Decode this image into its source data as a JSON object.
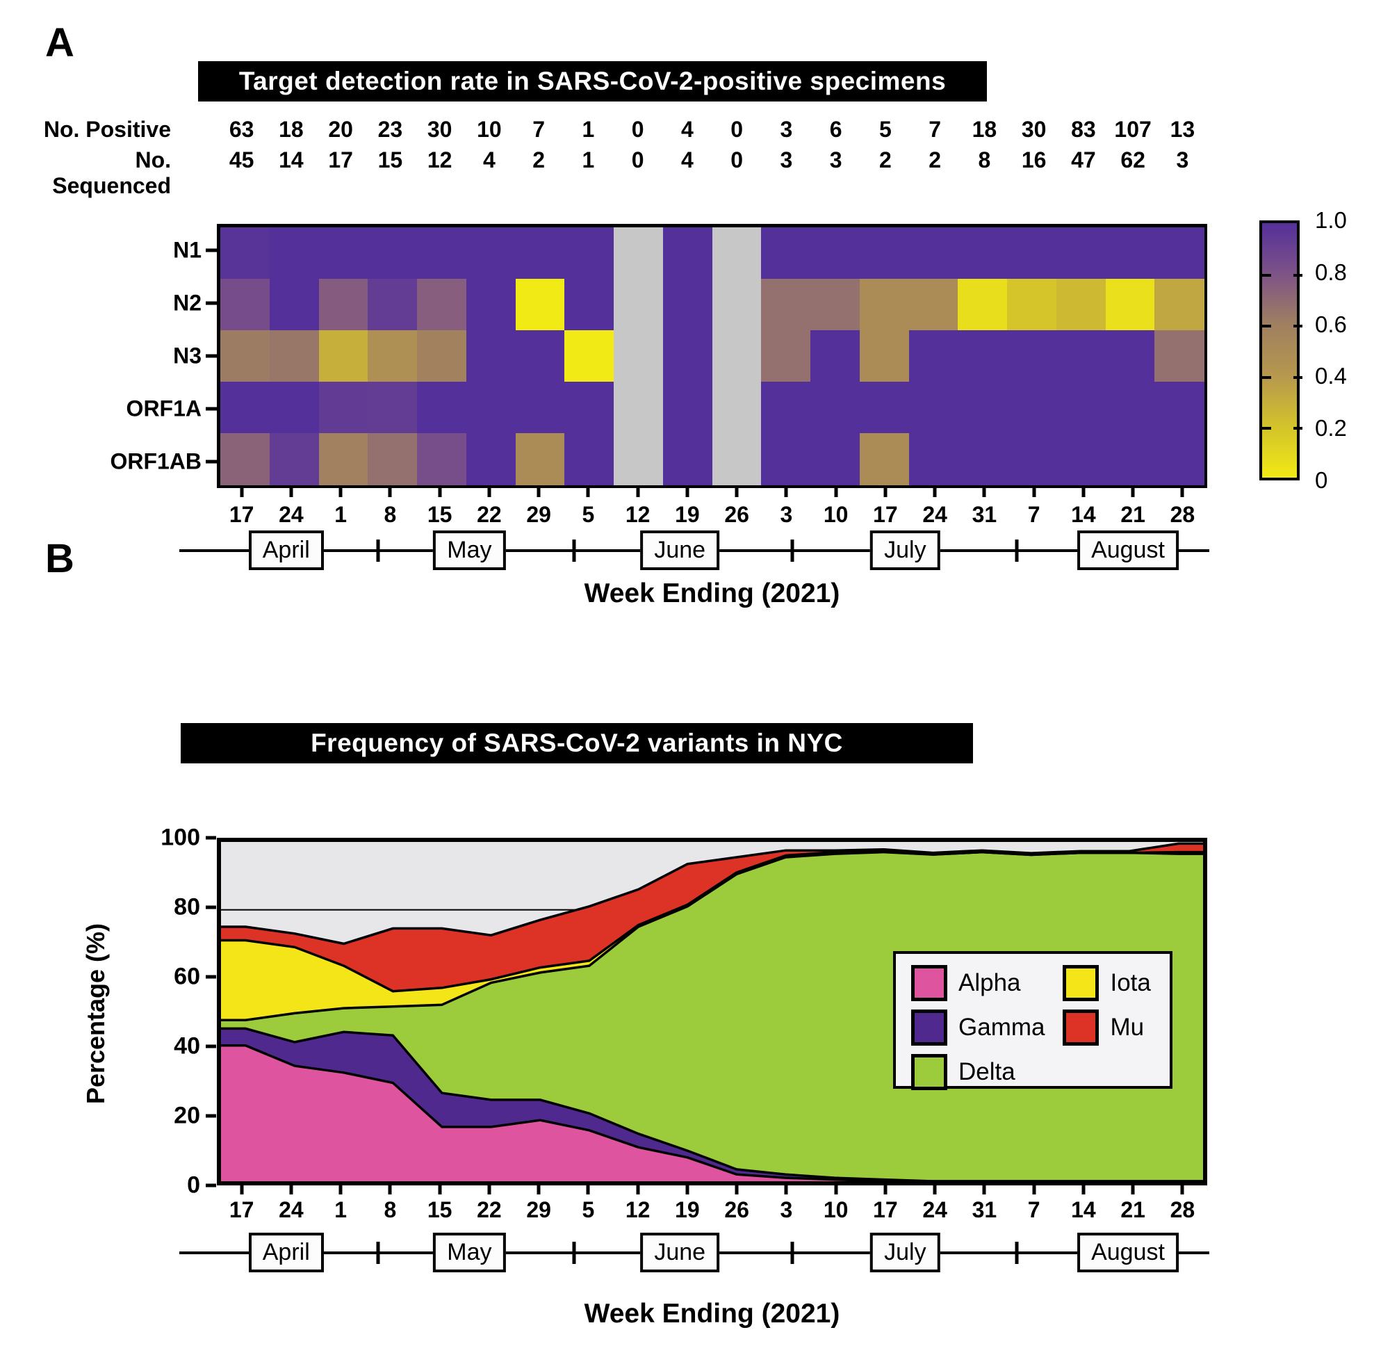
{
  "colors": {
    "heat_nodata": "#c7c7c7",
    "heat_stops": [
      [
        0,
        "#f1ea15"
      ],
      [
        0.2,
        "#d3c32b"
      ],
      [
        0.4,
        "#b6984e"
      ],
      [
        0.6,
        "#a08060"
      ],
      [
        0.8,
        "#7e5387"
      ],
      [
        1,
        "#54309a"
      ]
    ],
    "alpha": "#de549e",
    "gamma": "#50298f",
    "delta": "#9ccb3b",
    "iota": "#f3e517",
    "mu": "#dd3226",
    "other": "#e7e7ea",
    "frame": "#000000",
    "title_bg": "#000000",
    "title_fg": "#ffffff"
  },
  "panel_a": {
    "label": "A",
    "title": "Target detection rate in SARS-CoV-2-positive specimens",
    "positive_label": "No. Positive",
    "sequenced_label": "No. Sequenced",
    "xlabel": "Week Ending (2021)"
  },
  "panel_b": {
    "label": "B",
    "title": "Frequency of SARS-CoV-2 variants in NYC",
    "ylabel": "Percentage (%)",
    "yticks": [
      "100",
      "80",
      "60",
      "40",
      "20",
      "0"
    ],
    "xlabel": "Week Ending (2021)",
    "legend_columns": [
      [
        "Alpha",
        "Gamma",
        "Delta"
      ],
      [
        "Iota",
        "Mu"
      ]
    ]
  },
  "chart_data": [
    {
      "type": "heatmap",
      "title": "Target detection rate in SARS-CoV-2-positive specimens",
      "x_categories": [
        "17",
        "24",
        "1",
        "8",
        "15",
        "22",
        "29",
        "5",
        "12",
        "19",
        "26",
        "3",
        "10",
        "17",
        "24",
        "31",
        "7",
        "14",
        "21",
        "28"
      ],
      "x_months": [
        "April",
        "May",
        "June",
        "July",
        "August"
      ],
      "y_categories": [
        "N1",
        "N2",
        "N3",
        "ORF1A",
        "ORF1AB"
      ],
      "no_positive": [
        63,
        18,
        20,
        23,
        30,
        10,
        7,
        1,
        0,
        4,
        0,
        3,
        6,
        5,
        7,
        18,
        30,
        83,
        107,
        13
      ],
      "no_sequenced": [
        45,
        14,
        17,
        15,
        12,
        4,
        2,
        1,
        0,
        4,
        0,
        3,
        3,
        2,
        2,
        8,
        16,
        47,
        62,
        3
      ],
      "values": [
        [
          0.98,
          1,
          1,
          1,
          1,
          1,
          1,
          1,
          null,
          1,
          null,
          1,
          1,
          1,
          1,
          1,
          1,
          1,
          1,
          1
        ],
        [
          0.84,
          1,
          0.76,
          0.93,
          0.75,
          1,
          0,
          1,
          null,
          1,
          null,
          0.67,
          0.67,
          0.5,
          0.5,
          0.06,
          0.19,
          0.24,
          0.05,
          0.33
        ],
        [
          0.62,
          0.64,
          0.29,
          0.47,
          0.58,
          1,
          1,
          0,
          null,
          1,
          null,
          0.67,
          1,
          0.5,
          1,
          1,
          1,
          1,
          1,
          0.67
        ],
        [
          1,
          1,
          0.94,
          0.93,
          1,
          1,
          1,
          1,
          null,
          1,
          null,
          1,
          1,
          1,
          1,
          1,
          1,
          1,
          1,
          1
        ],
        [
          0.73,
          0.93,
          0.59,
          0.67,
          0.83,
          1,
          0.5,
          1,
          null,
          1,
          null,
          1,
          1,
          0.5,
          1,
          1,
          1,
          1,
          1,
          1
        ]
      ],
      "colorbar_ticks": [
        "1.0",
        "0.8",
        "0.6",
        "0.4",
        "0.2",
        "0"
      ],
      "colorbar_range": [
        0,
        1
      ],
      "nodata_meaning": "no sequenced specimens (gray)",
      "xlabel": "Week Ending (2021)"
    },
    {
      "type": "area",
      "title": "Frequency of SARS-CoV-2 variants in NYC",
      "x_categories": [
        "17",
        "24",
        "1",
        "8",
        "15",
        "22",
        "29",
        "5",
        "12",
        "19",
        "26",
        "3",
        "10",
        "17",
        "24",
        "31",
        "7",
        "14",
        "21",
        "28"
      ],
      "x_months": [
        "April",
        "May",
        "June",
        "July",
        "August"
      ],
      "ylabel": "Percentage (%)",
      "ylim": [
        0,
        100
      ],
      "gridline_y": 80,
      "legend_position": "right-center",
      "series": [
        {
          "name": "Alpha",
          "color_key": "alpha",
          "values": [
            40,
            34,
            32,
            29,
            16,
            16,
            18,
            15,
            10,
            7,
            2,
            1,
            0.5,
            0,
            0,
            0,
            0,
            0,
            0,
            0
          ]
        },
        {
          "name": "Gamma",
          "color_key": "gamma",
          "values": [
            5,
            7,
            12,
            14,
            10,
            8,
            6,
            5,
            4,
            2,
            1.5,
            1,
            0.5,
            0.5,
            0,
            0,
            0,
            0,
            0,
            0
          ]
        },
        {
          "name": "Delta",
          "color_key": "delta",
          "values": [
            2.5,
            8.5,
            7,
            8.5,
            26,
            34.5,
            37.5,
            43.5,
            61,
            72,
            87,
            93.5,
            95.5,
            96.5,
            96.3,
            97,
            96.2,
            96.8,
            96.8,
            96.5
          ]
        },
        {
          "name": "Iota",
          "color_key": "iota",
          "values": [
            23.5,
            19.5,
            12.5,
            4.5,
            5,
            1,
            1.5,
            1.5,
            0.5,
            0.5,
            0.5,
            0.5,
            0.5,
            0.5,
            0,
            0,
            0,
            0,
            0,
            0.5
          ]
        },
        {
          "name": "Mu",
          "color_key": "mu",
          "values": [
            4,
            4,
            6.5,
            18.5,
            17.5,
            13,
            14,
            16,
            10.5,
            12,
            4.5,
            1.5,
            0.5,
            0.3,
            0.5,
            0.5,
            0.5,
            0.5,
            0.5,
            2.5
          ]
        }
      ],
      "xlabel": "Week Ending (2021)"
    }
  ]
}
